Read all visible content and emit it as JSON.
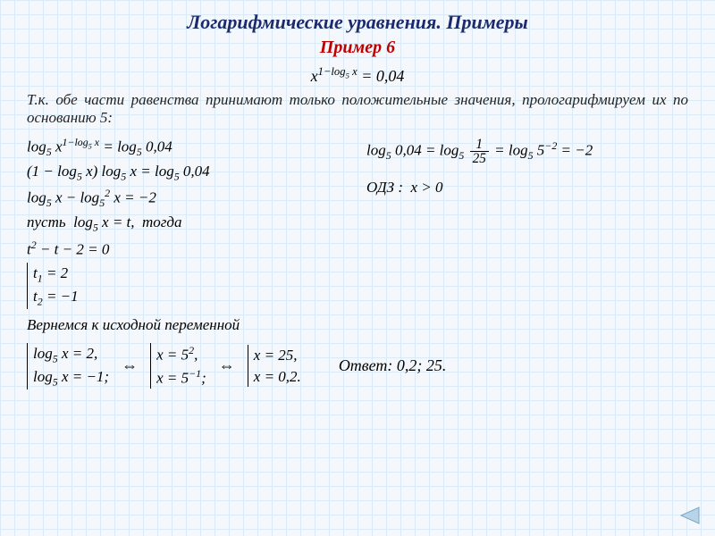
{
  "title": "Логарифмические уравнения. Примеры",
  "subtitle": "Пример 6",
  "main_equation_html": "x<sup>1&minus;log<sub>5</sub> x</sup> = 0,04",
  "note": "Т.к. обе части равенства принимают только положительные значения, прологарифмируем их по основанию 5:",
  "left_steps": [
    "log<sub>5</sub> x<sup>1&minus;log<sub>5</sub> x</sup> = log<sub>5</sub> 0,04",
    "(1 &minus; log<sub>5</sub> x) log<sub>5</sub> x = log<sub>5</sub> 0,04",
    "log<sub>5</sub> x &minus; log<sub>5</sub><sup>2</sup> x = &minus;2"
  ],
  "let_text": "пусть&nbsp; log<sub>5</sub> x = t,&nbsp; тогда",
  "quad": "t<sup>2</sup> &minus; t &minus; 2 = 0",
  "t_solutions": {
    "t1": "t<sub>1</sub> = 2",
    "t2": "t<sub>2</sub> = &minus;1"
  },
  "right_calc_html": "log<sub>5</sub> 0,04 = log<sub>5</sub> <span class='frac'><span class='n'>1</span><span class='d'>25</span></span> = log<sub>5</sub> 5<sup>&minus;2</sup> = &minus;2",
  "odz": "ОДЗ :&nbsp;&nbsp;x &gt; 0",
  "return_text": "Вернемся к исходной переменной",
  "sys1": {
    "a": "log<sub>5</sub> x = 2,",
    "b": "log<sub>5</sub> x = &minus;1;"
  },
  "sys2": {
    "a": "x = 5<sup>2</sup>,",
    "b": "x = 5<sup>&minus;1</sup>;"
  },
  "sys3": {
    "a": "x = 25,",
    "b": "x = 0,2."
  },
  "answer_label": "Ответ:",
  "answer_value": "0,2; 25.",
  "styles": {
    "bg": "#f4f8fc",
    "grid": "#dceaf5",
    "title_color": "#1a2a6c",
    "accent_color": "#c00000",
    "nav_fill": "#b8d4e8",
    "nav_stroke": "#7aa6c6",
    "title_fontsize": 22,
    "body_fontsize": 17
  }
}
